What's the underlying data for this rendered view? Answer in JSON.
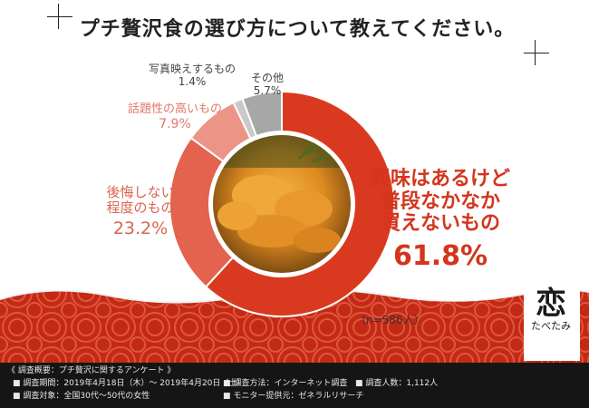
{
  "title": "プチ贅沢食の選び方について教えてください。",
  "n_note": "（n=586人）",
  "colors": {
    "main": "#d93a1f",
    "regret": "#e3634f",
    "topical": "#ec9485",
    "photo": "#c9c9c9",
    "other": "#a7a7a7",
    "pattern_bg": "#c32a14",
    "pattern_fg": "#e05540"
  },
  "chart_data": {
    "type": "pie",
    "donut": true,
    "start_angle_deg": 0,
    "direction": "clockwise",
    "slices": [
      {
        "label": "興味はあるけど普段なかなか買えないもの",
        "lines": [
          "興味はあるけど",
          "普段なかなか",
          "買えないもの"
        ],
        "value": 61.8,
        "pct_text": "61.8%",
        "color": "#d93a1f"
      },
      {
        "label": "後悔しない程度のもの",
        "lines": [
          "後悔しない",
          "程度のもの"
        ],
        "value": 23.2,
        "pct_text": "23.2%",
        "color": "#e3634f"
      },
      {
        "label": "話題性の高いもの",
        "lines": [
          "話題性の高いもの"
        ],
        "value": 7.9,
        "pct_text": "7.9%",
        "color": "#ec9485"
      },
      {
        "label": "写真映えするもの",
        "lines": [
          "写真映えするもの"
        ],
        "value": 1.4,
        "pct_text": "1.4%",
        "color": "#c9c9c9"
      },
      {
        "label": "その他",
        "lines": [
          "その他"
        ],
        "value": 5.7,
        "pct_text": "5.7%",
        "color": "#a7a7a7"
      }
    ],
    "center_image": "uni-photo"
  },
  "footer": {
    "heading": "《 調査概要：プチ贅沢に関するアンケート 》",
    "period": "■ 調査期間：2019年4月18日（木）～ 2019年4月20日（土）",
    "method": "■ 調査方法：インターネット調査",
    "count": "■ 調査人数：1,112人",
    "target": "■ 調査対象：全国30代～50代の女性",
    "provider": "■ モニター提供元：ゼネラルリサーチ"
  },
  "logo": {
    "main": "恋",
    "sub": "たべたみ"
  }
}
